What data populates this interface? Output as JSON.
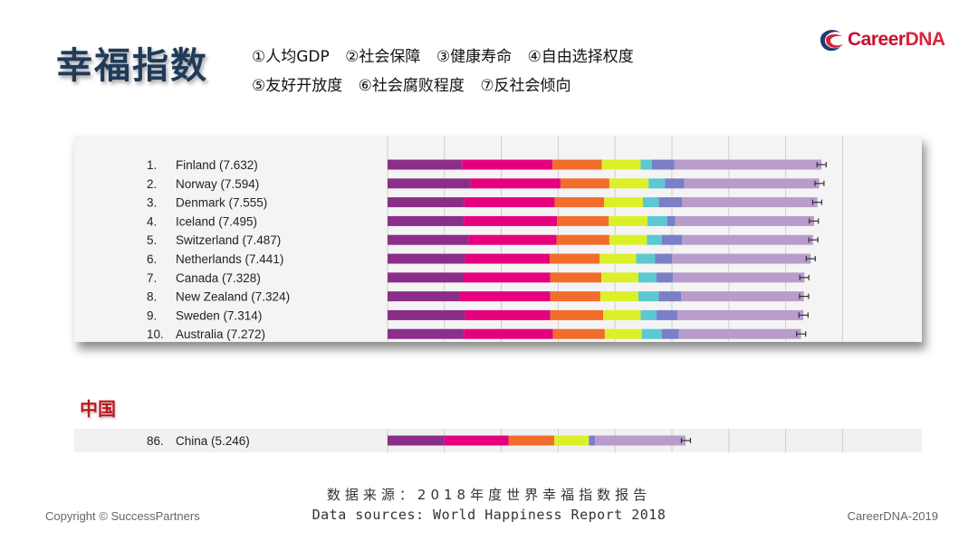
{
  "header": {
    "title": "幸福指数",
    "legend_row1": [
      "①人均GDP",
      "②社会保障",
      "③健康寿命",
      "④自由选择权度"
    ],
    "legend_row2": [
      "⑤友好开放度",
      "⑥社会腐败程度",
      "⑦反社会倾向"
    ],
    "logo_text_career": "Career",
    "logo_text_dna": "DNA"
  },
  "china_section_title": "中国",
  "footer": {
    "source_cn": "数据来源：2018年度世界幸福指数报告",
    "source_en": "Data sources: World Happiness Report 2018",
    "copyright": "Copyright © SuccessPartners",
    "right_text": "CareerDNA-2019"
  },
  "colors": {
    "segments": [
      "#8a2e8a",
      "#e5007e",
      "#f26d2c",
      "#dcf02a",
      "#5cc8d2",
      "#7b7fc8",
      "#b89ccc"
    ],
    "title": "#1f3b5a",
    "china_title": "#c0161c",
    "logo_red": "#d7263d",
    "logo_blue": "#1f3b6f"
  },
  "chart_data": {
    "type": "bar",
    "stacked": true,
    "orientation": "horizontal",
    "xlim": [
      0,
      8
    ],
    "grid": true,
    "segment_names": [
      "①人均GDP",
      "②社会保障",
      "③健康寿命",
      "④自由选择权度",
      "⑤友好开放度",
      "⑥社会腐败程度",
      "⑦反社会倾向"
    ],
    "top10": [
      {
        "rank": "1.",
        "label": "Finland (7.632)",
        "score": 7.632,
        "segments": [
          1.31,
          1.59,
          0.87,
          0.68,
          0.2,
          0.39,
          2.59
        ]
      },
      {
        "rank": "2.",
        "label": "Norway (7.594)",
        "score": 7.594,
        "segments": [
          1.46,
          1.58,
          0.86,
          0.69,
          0.29,
          0.34,
          2.37
        ]
      },
      {
        "rank": "3.",
        "label": "Denmark (7.555)",
        "score": 7.555,
        "segments": [
          1.35,
          1.59,
          0.87,
          0.68,
          0.28,
          0.41,
          2.38
        ]
      },
      {
        "rank": "4.",
        "label": "Iceland (7.495)",
        "score": 7.495,
        "segments": [
          1.34,
          1.64,
          0.91,
          0.68,
          0.35,
          0.14,
          2.44
        ]
      },
      {
        "rank": "5.",
        "label": "Switzerland (7.487)",
        "score": 7.487,
        "segments": [
          1.42,
          1.55,
          0.93,
          0.66,
          0.26,
          0.36,
          2.3
        ]
      },
      {
        "rank": "6.",
        "label": "Netherlands (7.441)",
        "score": 7.441,
        "segments": [
          1.36,
          1.49,
          0.88,
          0.64,
          0.33,
          0.3,
          2.44
        ]
      },
      {
        "rank": "7.",
        "label": "Canada (7.328)",
        "score": 7.328,
        "segments": [
          1.33,
          1.53,
          0.9,
          0.65,
          0.32,
          0.29,
          2.31
        ]
      },
      {
        "rank": "8.",
        "label": "New Zealand (7.324)",
        "score": 7.324,
        "segments": [
          1.26,
          1.6,
          0.88,
          0.67,
          0.36,
          0.39,
          2.16
        ]
      },
      {
        "rank": "9.",
        "label": "Sweden (7.314)",
        "score": 7.314,
        "segments": [
          1.36,
          1.5,
          0.93,
          0.66,
          0.28,
          0.37,
          2.21
        ]
      },
      {
        "rank": "10.",
        "label": "Australia (7.272)",
        "score": 7.272,
        "segments": [
          1.34,
          1.57,
          0.91,
          0.65,
          0.35,
          0.3,
          2.15
        ]
      }
    ],
    "china": {
      "rank": "86.",
      "label": "China (5.246)",
      "score": 5.246,
      "segments": [
        1.0,
        1.13,
        0.8,
        0.61,
        0.0,
        0.11,
        1.59
      ]
    }
  }
}
